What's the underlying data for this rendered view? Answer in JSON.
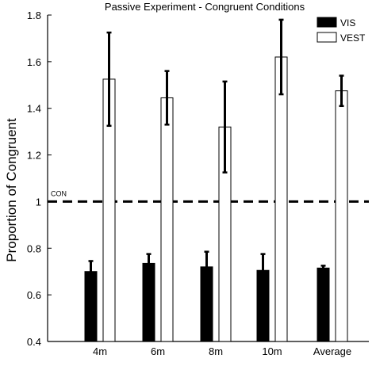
{
  "chart_data": {
    "type": "bar",
    "title": "Passive Experiment - Congruent Conditions",
    "xlabel": "",
    "ylabel": "Proportion of Congruent",
    "ylim": [
      0.4,
      1.8
    ],
    "yticks": [
      "0.4",
      "0.6",
      "0.8",
      "1",
      "1.2",
      "1.4",
      "1.6",
      "1.8"
    ],
    "categories": [
      "4m",
      "6m",
      "8m",
      "10m",
      "Average"
    ],
    "series": [
      {
        "name": "VIS",
        "color": "#000000",
        "values": [
          0.7,
          0.735,
          0.72,
          0.705,
          0.715
        ],
        "error": [
          0.045,
          0.04,
          0.065,
          0.07,
          0.01
        ]
      },
      {
        "name": "VEST",
        "color": "#ffffff",
        "values": [
          1.525,
          1.445,
          1.32,
          1.62,
          1.475
        ],
        "error": [
          0.2,
          0.115,
          0.195,
          0.16,
          0.065
        ]
      }
    ],
    "reference_line": {
      "value": 1.0,
      "label": "CON",
      "style": "dashed"
    },
    "legend": {
      "position": "top-right"
    },
    "grid": false
  }
}
